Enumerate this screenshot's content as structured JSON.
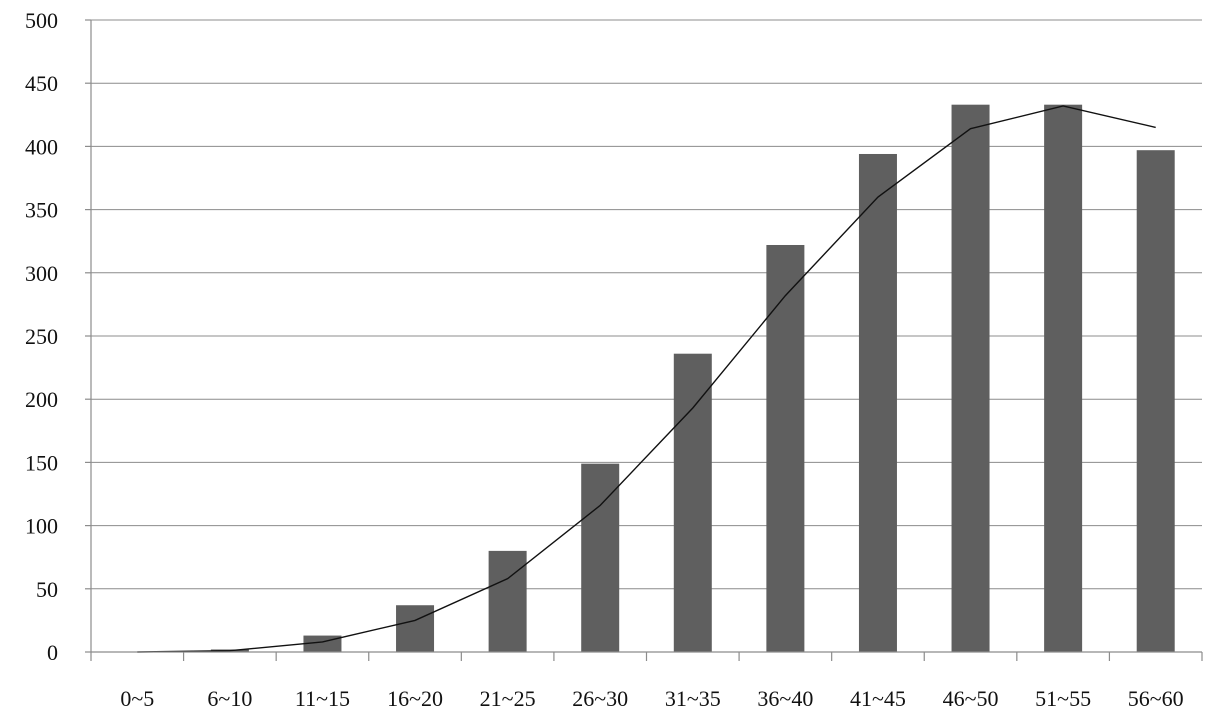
{
  "chart_data": {
    "type": "bar",
    "categories": [
      "0~5",
      "6~10",
      "11~15",
      "16~20",
      "21~25",
      "26~30",
      "31~35",
      "36~40",
      "41~45",
      "46~50",
      "51~55",
      "56~60"
    ],
    "series": [
      {
        "values": [
          0,
          2,
          13,
          37,
          80,
          149,
          236,
          322,
          394,
          433,
          433,
          397
        ]
      }
    ],
    "trend_line": {
      "type": "line",
      "values": [
        0,
        1,
        8,
        25,
        58,
        116,
        193,
        282,
        360,
        414,
        432,
        415
      ]
    },
    "ylim": [
      0,
      500
    ],
    "y_ticks": [
      0,
      50,
      100,
      150,
      200,
      250,
      300,
      350,
      400,
      450,
      500
    ],
    "grid": true,
    "legend": "none",
    "colors": {
      "bar": "#5f5f5f",
      "line": "#111111",
      "grid": "#8c8c8c"
    }
  }
}
